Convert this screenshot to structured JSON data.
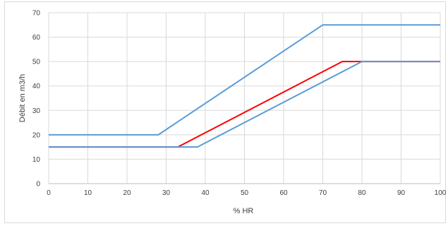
{
  "chart_data": {
    "type": "line",
    "title": "",
    "xlabel": "% HR",
    "ylabel": "Débit en m3/h",
    "xlim": [
      0,
      100
    ],
    "ylim": [
      0,
      70
    ],
    "xticks": [
      0,
      10,
      20,
      30,
      40,
      50,
      60,
      70,
      80,
      90,
      100
    ],
    "yticks": [
      0,
      10,
      20,
      30,
      40,
      50,
      60,
      70
    ],
    "grid": true,
    "legend": "none",
    "series": [
      {
        "color": "#5b9bd5",
        "points": [
          [
            0,
            20
          ],
          [
            28,
            20
          ],
          [
            70,
            65
          ],
          [
            100,
            65
          ]
        ]
      },
      {
        "color": "#ff0000",
        "points": [
          [
            0,
            15
          ],
          [
            33,
            15
          ],
          [
            75,
            50
          ],
          [
            100,
            50
          ]
        ]
      },
      {
        "color": "#5b9bd5",
        "points": [
          [
            0,
            15
          ],
          [
            38,
            15
          ],
          [
            80,
            50
          ],
          [
            100,
            50
          ]
        ]
      }
    ]
  }
}
